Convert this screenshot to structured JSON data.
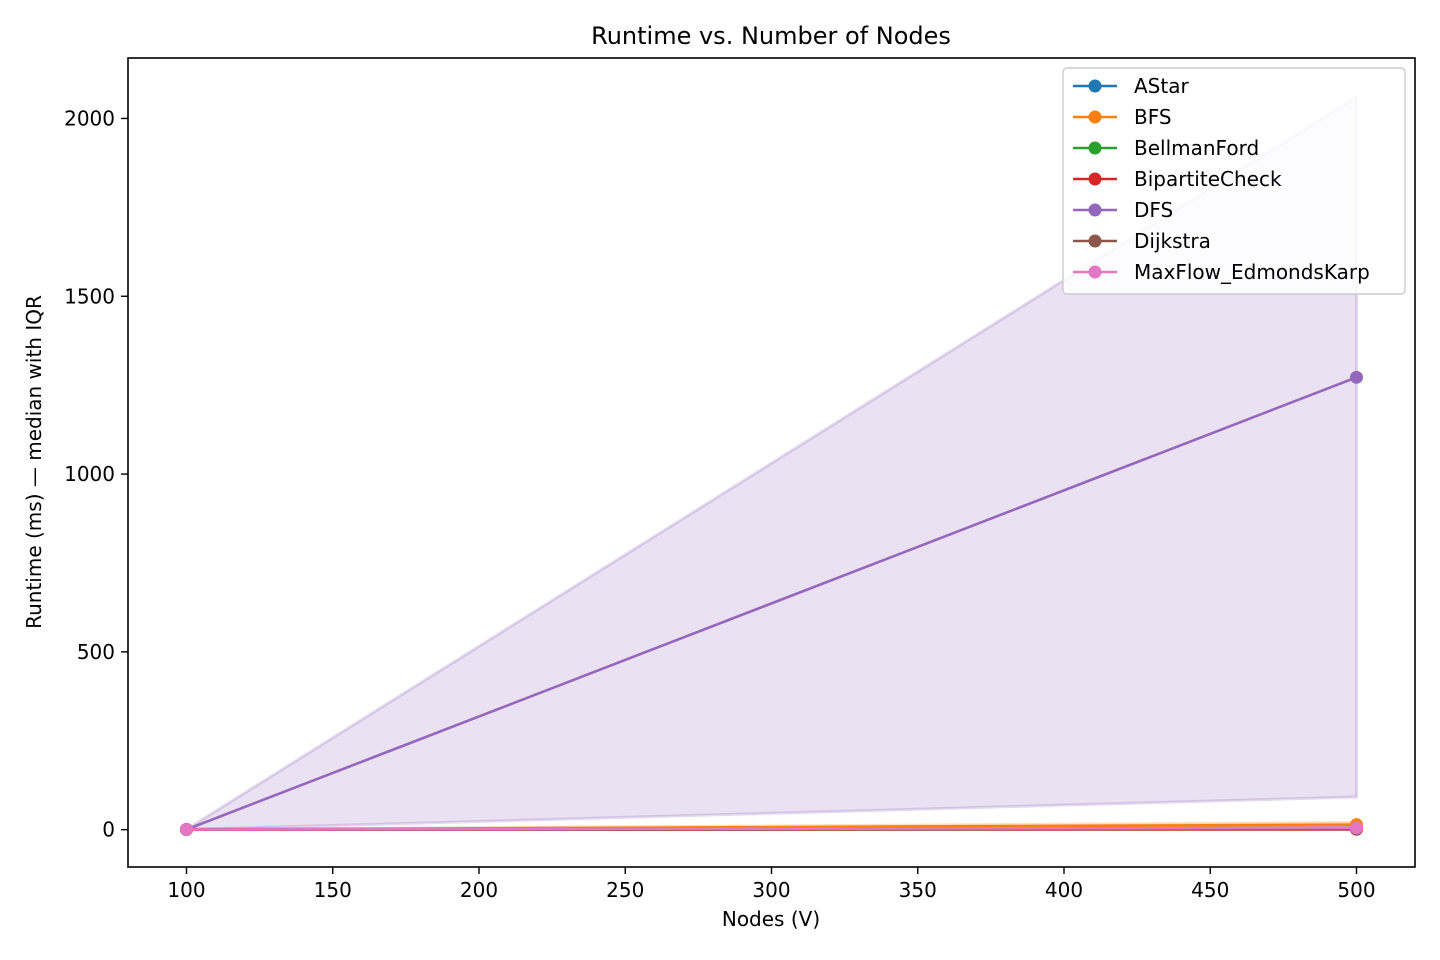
{
  "chart_data": {
    "type": "line",
    "title": "Runtime vs. Number of Nodes",
    "xlabel": "Nodes (V)",
    "ylabel": "Runtime (ms) — median with IQR",
    "xlim": [
      80,
      520
    ],
    "ylim": [
      -105,
      2170
    ],
    "xticks": [
      100,
      150,
      200,
      250,
      300,
      350,
      400,
      450,
      500
    ],
    "yticks": [
      0,
      500,
      1000,
      1500,
      2000
    ],
    "legend_position": "top-right",
    "x": [
      100,
      500
    ],
    "series": [
      {
        "name": "AStar",
        "color": "#1f77b4",
        "values": [
          0.5,
          3
        ],
        "iqr": [
          [
            0.3,
            0.8
          ],
          [
            2,
            5
          ]
        ]
      },
      {
        "name": "BFS",
        "color": "#ff7f0e",
        "values": [
          0.5,
          14
        ],
        "iqr": [
          [
            0.3,
            0.8
          ],
          [
            10,
            20
          ]
        ]
      },
      {
        "name": "BellmanFord",
        "color": "#2ca02c",
        "values": [
          0.5,
          4
        ],
        "iqr": [
          [
            0.3,
            0.8
          ],
          [
            2,
            6
          ]
        ]
      },
      {
        "name": "BipartiteCheck",
        "color": "#d62728",
        "values": [
          0.5,
          1
        ],
        "iqr": [
          [
            0.3,
            0.8
          ],
          [
            0.5,
            2
          ]
        ]
      },
      {
        "name": "DFS",
        "color": "#9467bd",
        "values": [
          0.5,
          1272
        ],
        "iqr": [
          [
            0.3,
            0.8
          ],
          [
            92,
            2060
          ]
        ]
      },
      {
        "name": "Dijkstra",
        "color": "#8c564b",
        "values": [
          0.5,
          2
        ],
        "iqr": [
          [
            0.3,
            0.8
          ],
          [
            1,
            3
          ]
        ]
      },
      {
        "name": "MaxFlow_EdmondsKarp",
        "color": "#e377c2",
        "values": [
          0.5,
          5
        ],
        "iqr": [
          [
            0.3,
            0.8
          ],
          [
            3,
            8
          ]
        ]
      }
    ]
  }
}
